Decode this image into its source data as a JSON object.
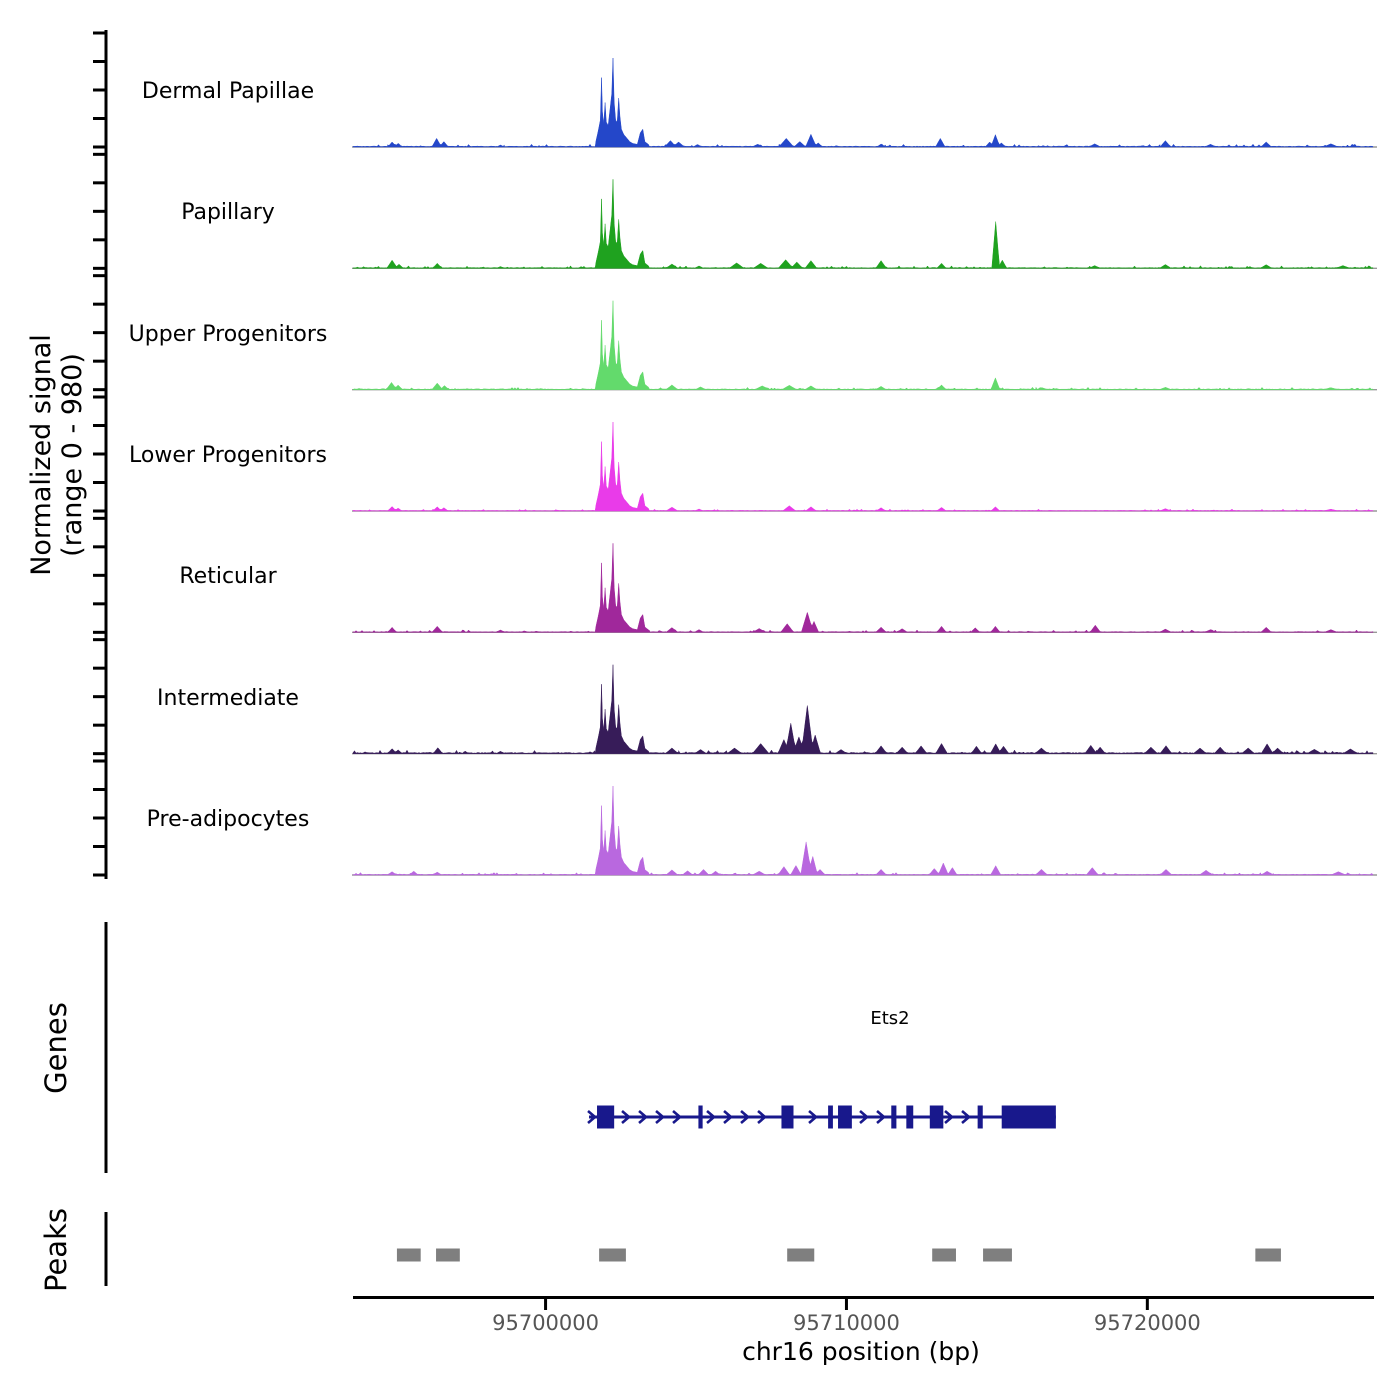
{
  "chart_data": {
    "type": "area",
    "subtype": "genome-browser-signal-tracks",
    "region": {
      "chromosome": "chr16",
      "xlim": [
        95693600,
        95727500
      ]
    },
    "x_axis": {
      "label": "chr16 position (bp)",
      "ticks": [
        95700000,
        95710000,
        95720000
      ],
      "tick_labels": [
        "95700000",
        "95710000",
        "95720000"
      ]
    },
    "y_axis": {
      "label_line1": "Normalized signal",
      "label_line2": "(range 0 - 980)",
      "range": [
        0,
        980
      ]
    },
    "cluster_shape": {
      "bp": [
        95701650,
        95701750,
        95701820,
        95701860,
        95701890,
        95701930,
        95701980,
        95702020,
        95702080,
        95702150,
        95702200,
        95702240,
        95702280,
        95702330,
        95702380,
        95702430,
        95702470,
        95702520,
        95702600,
        95702700,
        95702800,
        95702900,
        95703050,
        95703150,
        95703230,
        95703300,
        95703450
      ],
      "frac": [
        0.03,
        0.18,
        0.3,
        0.78,
        0.4,
        0.25,
        0.5,
        0.28,
        0.24,
        0.45,
        0.6,
        1.0,
        0.5,
        0.3,
        0.28,
        0.55,
        0.35,
        0.2,
        0.14,
        0.1,
        0.06,
        0.04,
        0.03,
        0.16,
        0.2,
        0.06,
        0.02
      ]
    },
    "tracks": [
      {
        "name": "Dermal Papillae",
        "color": "#2447C9",
        "cluster_max": 980,
        "noise": 30,
        "spikes": [
          [
            95694900,
            55,
            150
          ],
          [
            95695100,
            40,
            130
          ],
          [
            95696380,
            95,
            160
          ],
          [
            95696620,
            60,
            150
          ],
          [
            95698500,
            22,
            130
          ],
          [
            95704150,
            70,
            200
          ],
          [
            95704420,
            55,
            200
          ],
          [
            95705050,
            28,
            150
          ],
          [
            95707050,
            30,
            200
          ],
          [
            95708000,
            95,
            250
          ],
          [
            95708450,
            60,
            200
          ],
          [
            95708820,
            140,
            180
          ],
          [
            95709060,
            45,
            150
          ],
          [
            95711150,
            32,
            150
          ],
          [
            95713120,
            95,
            160
          ],
          [
            95714760,
            55,
            150
          ],
          [
            95714950,
            135,
            150
          ],
          [
            95715150,
            45,
            150
          ],
          [
            95718250,
            35,
            200
          ],
          [
            95720600,
            70,
            180
          ],
          [
            95722100,
            30,
            200
          ],
          [
            95723950,
            55,
            180
          ],
          [
            95726100,
            35,
            250
          ]
        ]
      },
      {
        "name": "Papillary",
        "color": "#1FA21F",
        "cluster_max": 980,
        "noise": 28,
        "spikes": [
          [
            95694900,
            90,
            180
          ],
          [
            95695130,
            45,
            150
          ],
          [
            95696400,
            55,
            160
          ],
          [
            95698500,
            20,
            140
          ],
          [
            95704200,
            48,
            200
          ],
          [
            95705100,
            26,
            160
          ],
          [
            95706350,
            60,
            250
          ],
          [
            95707150,
            55,
            250
          ],
          [
            95707980,
            95,
            250
          ],
          [
            95708350,
            70,
            200
          ],
          [
            95708820,
            85,
            200
          ],
          [
            95711150,
            85,
            180
          ],
          [
            95713160,
            55,
            160
          ],
          [
            95714960,
            515,
            130
          ],
          [
            95715180,
            90,
            150
          ],
          [
            95718250,
            30,
            200
          ],
          [
            95720600,
            42,
            200
          ],
          [
            95723950,
            40,
            200
          ],
          [
            95726500,
            30,
            250
          ]
        ]
      },
      {
        "name": "Upper Progenitors",
        "color": "#63DA6C",
        "cluster_max": 980,
        "noise": 26,
        "spikes": [
          [
            95694880,
            80,
            180
          ],
          [
            95695100,
            50,
            150
          ],
          [
            95696400,
            72,
            180
          ],
          [
            95696640,
            45,
            150
          ],
          [
            95704200,
            52,
            200
          ],
          [
            95705150,
            30,
            180
          ],
          [
            95707200,
            42,
            250
          ],
          [
            95708100,
            48,
            250
          ],
          [
            95708820,
            42,
            200
          ],
          [
            95711150,
            36,
            180
          ],
          [
            95713160,
            52,
            160
          ],
          [
            95714950,
            130,
            150
          ],
          [
            95716500,
            22,
            200
          ],
          [
            95720600,
            26,
            200
          ],
          [
            95726100,
            22,
            250
          ]
        ]
      },
      {
        "name": "Lower Progenitors",
        "color": "#E93BE9",
        "cluster_max": 980,
        "noise": 20,
        "spikes": [
          [
            95694900,
            50,
            150
          ],
          [
            95695100,
            32,
            130
          ],
          [
            95696400,
            46,
            150
          ],
          [
            95696620,
            36,
            150
          ],
          [
            95704200,
            42,
            200
          ],
          [
            95705100,
            22,
            150
          ],
          [
            95708100,
            58,
            220
          ],
          [
            95708820,
            46,
            180
          ],
          [
            95711150,
            36,
            160
          ],
          [
            95713160,
            40,
            160
          ],
          [
            95714950,
            46,
            150
          ],
          [
            95720600,
            26,
            200
          ],
          [
            95726100,
            20,
            250
          ]
        ]
      },
      {
        "name": "Reticular",
        "color": "#A0289B",
        "cluster_max": 980,
        "noise": 26,
        "spikes": [
          [
            95694900,
            55,
            150
          ],
          [
            95696400,
            66,
            180
          ],
          [
            95698500,
            26,
            150
          ],
          [
            95704200,
            52,
            200
          ],
          [
            95705100,
            30,
            160
          ],
          [
            95707100,
            42,
            220
          ],
          [
            95708030,
            95,
            220
          ],
          [
            95708700,
            220,
            200
          ],
          [
            95708920,
            120,
            160
          ],
          [
            95711150,
            56,
            180
          ],
          [
            95711850,
            40,
            180
          ],
          [
            95713160,
            66,
            160
          ],
          [
            95714280,
            50,
            160
          ],
          [
            95714950,
            66,
            160
          ],
          [
            95718270,
            78,
            180
          ],
          [
            95720600,
            36,
            200
          ],
          [
            95722100,
            30,
            200
          ],
          [
            95723950,
            55,
            180
          ],
          [
            95726100,
            30,
            220
          ]
        ]
      },
      {
        "name": "Intermediate",
        "color": "#371C59",
        "cluster_max": 980,
        "noise": 40,
        "spikes": [
          [
            95694900,
            55,
            160
          ],
          [
            95695100,
            42,
            140
          ],
          [
            95696420,
            66,
            160
          ],
          [
            95698500,
            26,
            150
          ],
          [
            95704200,
            62,
            220
          ],
          [
            95705150,
            46,
            200
          ],
          [
            95706280,
            62,
            250
          ],
          [
            95707150,
            112,
            280
          ],
          [
            95707920,
            155,
            200
          ],
          [
            95708150,
            335,
            180
          ],
          [
            95708420,
            185,
            200
          ],
          [
            95708700,
            530,
            200
          ],
          [
            95708960,
            205,
            180
          ],
          [
            95709820,
            46,
            200
          ],
          [
            95711150,
            86,
            200
          ],
          [
            95711850,
            72,
            200
          ],
          [
            95712480,
            86,
            200
          ],
          [
            95713160,
            112,
            200
          ],
          [
            95714320,
            82,
            180
          ],
          [
            95714960,
            108,
            180
          ],
          [
            95715220,
            82,
            180
          ],
          [
            95716480,
            62,
            220
          ],
          [
            95718120,
            92,
            200
          ],
          [
            95718430,
            72,
            180
          ],
          [
            95720120,
            72,
            220
          ],
          [
            95720620,
            88,
            200
          ],
          [
            95721750,
            62,
            220
          ],
          [
            95722420,
            72,
            200
          ],
          [
            95723350,
            62,
            220
          ],
          [
            95723980,
            108,
            200
          ],
          [
            95724330,
            62,
            200
          ],
          [
            95725550,
            48,
            250
          ],
          [
            95726750,
            52,
            250
          ]
        ]
      },
      {
        "name": "Pre-adipocytes",
        "color": "#B968DF",
        "cluster_max": 980,
        "noise": 26,
        "spikes": [
          [
            95694900,
            36,
            160
          ],
          [
            95695620,
            42,
            150
          ],
          [
            95696400,
            32,
            150
          ],
          [
            95704200,
            56,
            200
          ],
          [
            95704720,
            46,
            180
          ],
          [
            95705250,
            62,
            180
          ],
          [
            95705650,
            42,
            160
          ],
          [
            95707100,
            42,
            220
          ],
          [
            95707920,
            92,
            200
          ],
          [
            95708320,
            105,
            180
          ],
          [
            95708660,
            365,
            180
          ],
          [
            95708880,
            205,
            160
          ],
          [
            95709120,
            62,
            180
          ],
          [
            95711150,
            62,
            180
          ],
          [
            95712920,
            72,
            180
          ],
          [
            95713220,
            132,
            170
          ],
          [
            95713520,
            82,
            160
          ],
          [
            95714960,
            102,
            170
          ],
          [
            95716480,
            62,
            200
          ],
          [
            95718170,
            82,
            200
          ],
          [
            95720620,
            62,
            200
          ],
          [
            95721950,
            52,
            220
          ],
          [
            95723980,
            42,
            200
          ],
          [
            95726350,
            36,
            250
          ]
        ]
      }
    ],
    "genes": {
      "label": "Genes",
      "color": "#18188C",
      "gene": {
        "name": "Ets2",
        "strand": "+",
        "start": 95701710,
        "end": 95716960,
        "exons": [
          [
            95701710,
            95702280
          ],
          [
            95705080,
            95705220
          ],
          [
            95707840,
            95708240
          ],
          [
            95709390,
            95709550
          ],
          [
            95709720,
            95710180
          ],
          [
            95711490,
            95711660
          ],
          [
            95711990,
            95712220
          ],
          [
            95712770,
            95713220
          ],
          [
            95714360,
            95714530
          ],
          [
            95715160,
            95716960
          ]
        ]
      }
    },
    "peaks": {
      "label": "Peaks",
      "color": "#7F7F7F",
      "intervals": [
        [
          95695060,
          95695850
        ],
        [
          95696360,
          95697150
        ],
        [
          95701780,
          95702670
        ],
        [
          95708030,
          95708930
        ],
        [
          95712850,
          95713640
        ],
        [
          95714540,
          95715500
        ],
        [
          95723590,
          95724440
        ]
      ]
    }
  }
}
